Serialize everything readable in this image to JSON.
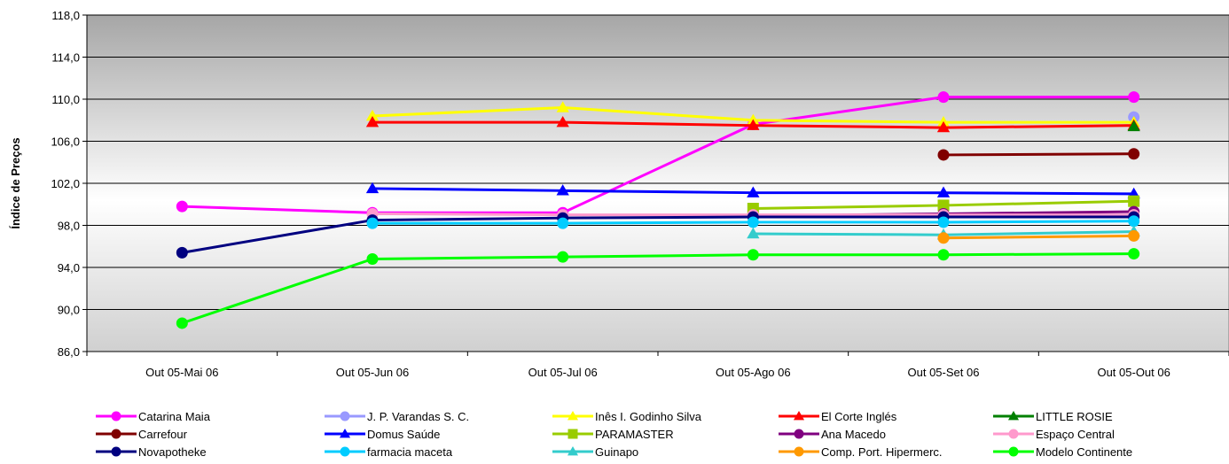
{
  "chart_data": {
    "type": "line",
    "title": "",
    "xlabel": "",
    "ylabel": "Índice de Preços",
    "categories": [
      "Out 05-Mai 06",
      "Out 05-Jun 06",
      "Out 05-Jul 06",
      "Out 05-Ago 06",
      "Out 05-Set 06",
      "Out 05-Out 06"
    ],
    "ylim": [
      86.0,
      118.0
    ],
    "yticks": [
      "86,0",
      "90,0",
      "94,0",
      "98,0",
      "102,0",
      "106,0",
      "110,0",
      "114,0",
      "118,0"
    ],
    "grid": true,
    "legend_position": "bottom",
    "series": [
      {
        "name": "Catarina Maia",
        "color": "#ff00ff",
        "marker": "circle",
        "values": [
          99.8,
          99.2,
          99.2,
          107.6,
          110.2,
          110.2
        ]
      },
      {
        "name": "J. P. Varandas S. C.",
        "color": "#9999ff",
        "marker": "circle",
        "values": [
          null,
          null,
          null,
          null,
          null,
          108.3
        ]
      },
      {
        "name": "Inês I. Godinho Silva",
        "color": "#ffff00",
        "marker": "triangle",
        "values": [
          null,
          108.4,
          109.2,
          108.0,
          107.8,
          107.8
        ]
      },
      {
        "name": "El Corte Inglés",
        "color": "#ff0000",
        "marker": "triangle",
        "values": [
          null,
          107.8,
          107.8,
          107.5,
          107.3,
          107.5
        ]
      },
      {
        "name": "LITTLE ROSIE",
        "color": "#008000",
        "marker": "triangle",
        "values": [
          null,
          null,
          null,
          null,
          null,
          107.4
        ]
      },
      {
        "name": "Carrefour",
        "color": "#800000",
        "marker": "circle",
        "values": [
          null,
          null,
          null,
          null,
          104.7,
          104.8
        ]
      },
      {
        "name": "Domus Saúde",
        "color": "#0000ff",
        "marker": "triangle",
        "values": [
          null,
          101.5,
          101.3,
          101.1,
          101.1,
          101.0
        ]
      },
      {
        "name": "PARAMASTER",
        "color": "#99cc00",
        "marker": "square",
        "values": [
          null,
          null,
          null,
          99.6,
          99.9,
          100.3
        ]
      },
      {
        "name": "Ana Macedo",
        "color": "#800080",
        "marker": "circle",
        "values": [
          null,
          null,
          null,
          98.9,
          99.1,
          99.3
        ]
      },
      {
        "name": "Espaço Central",
        "color": "#ff99cc",
        "marker": "circle",
        "values": [
          null,
          99.1,
          99.0,
          99.0,
          99.0,
          99.0
        ]
      },
      {
        "name": "Novapotheke",
        "color": "#000080",
        "marker": "circle",
        "values": [
          95.4,
          98.5,
          98.7,
          98.8,
          98.8,
          98.8
        ]
      },
      {
        "name": "farmacia maceta",
        "color": "#00ccff",
        "marker": "circle",
        "values": [
          null,
          98.2,
          98.2,
          98.3,
          98.3,
          98.4
        ]
      },
      {
        "name": "Guinapo",
        "color": "#33cccc",
        "marker": "triangle",
        "values": [
          null,
          null,
          null,
          97.2,
          97.1,
          97.4
        ]
      },
      {
        "name": "Comp. Port. Hipermerc.",
        "color": "#ff9900",
        "marker": "circle",
        "values": [
          null,
          null,
          null,
          null,
          96.8,
          97.0
        ]
      },
      {
        "name": "Modelo Continente",
        "color": "#00ff00",
        "marker": "circle",
        "values": [
          88.7,
          94.8,
          95.0,
          95.2,
          95.2,
          95.3
        ]
      }
    ]
  }
}
